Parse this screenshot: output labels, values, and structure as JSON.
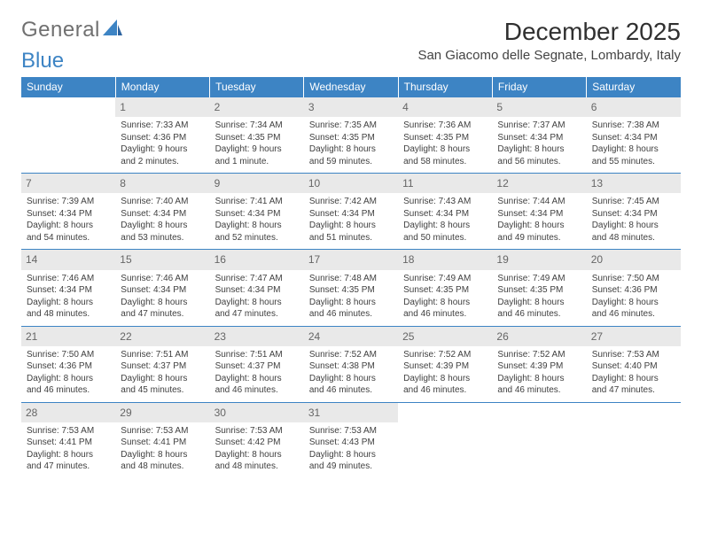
{
  "brand": {
    "name_a": "General",
    "name_b": "Blue"
  },
  "title": "December 2025",
  "location": "San Giacomo delle Segnate, Lombardy, Italy",
  "colors": {
    "accent": "#3d84c4",
    "daybg": "#e9e9e9"
  },
  "day_headers": [
    "Sunday",
    "Monday",
    "Tuesday",
    "Wednesday",
    "Thursday",
    "Friday",
    "Saturday"
  ],
  "weeks": [
    [
      {
        "n": "",
        "sr": "",
        "ss": "",
        "dl": ""
      },
      {
        "n": "1",
        "sr": "Sunrise: 7:33 AM",
        "ss": "Sunset: 4:36 PM",
        "dl": "Daylight: 9 hours and 2 minutes."
      },
      {
        "n": "2",
        "sr": "Sunrise: 7:34 AM",
        "ss": "Sunset: 4:35 PM",
        "dl": "Daylight: 9 hours and 1 minute."
      },
      {
        "n": "3",
        "sr": "Sunrise: 7:35 AM",
        "ss": "Sunset: 4:35 PM",
        "dl": "Daylight: 8 hours and 59 minutes."
      },
      {
        "n": "4",
        "sr": "Sunrise: 7:36 AM",
        "ss": "Sunset: 4:35 PM",
        "dl": "Daylight: 8 hours and 58 minutes."
      },
      {
        "n": "5",
        "sr": "Sunrise: 7:37 AM",
        "ss": "Sunset: 4:34 PM",
        "dl": "Daylight: 8 hours and 56 minutes."
      },
      {
        "n": "6",
        "sr": "Sunrise: 7:38 AM",
        "ss": "Sunset: 4:34 PM",
        "dl": "Daylight: 8 hours and 55 minutes."
      }
    ],
    [
      {
        "n": "7",
        "sr": "Sunrise: 7:39 AM",
        "ss": "Sunset: 4:34 PM",
        "dl": "Daylight: 8 hours and 54 minutes."
      },
      {
        "n": "8",
        "sr": "Sunrise: 7:40 AM",
        "ss": "Sunset: 4:34 PM",
        "dl": "Daylight: 8 hours and 53 minutes."
      },
      {
        "n": "9",
        "sr": "Sunrise: 7:41 AM",
        "ss": "Sunset: 4:34 PM",
        "dl": "Daylight: 8 hours and 52 minutes."
      },
      {
        "n": "10",
        "sr": "Sunrise: 7:42 AM",
        "ss": "Sunset: 4:34 PM",
        "dl": "Daylight: 8 hours and 51 minutes."
      },
      {
        "n": "11",
        "sr": "Sunrise: 7:43 AM",
        "ss": "Sunset: 4:34 PM",
        "dl": "Daylight: 8 hours and 50 minutes."
      },
      {
        "n": "12",
        "sr": "Sunrise: 7:44 AM",
        "ss": "Sunset: 4:34 PM",
        "dl": "Daylight: 8 hours and 49 minutes."
      },
      {
        "n": "13",
        "sr": "Sunrise: 7:45 AM",
        "ss": "Sunset: 4:34 PM",
        "dl": "Daylight: 8 hours and 48 minutes."
      }
    ],
    [
      {
        "n": "14",
        "sr": "Sunrise: 7:46 AM",
        "ss": "Sunset: 4:34 PM",
        "dl": "Daylight: 8 hours and 48 minutes."
      },
      {
        "n": "15",
        "sr": "Sunrise: 7:46 AM",
        "ss": "Sunset: 4:34 PM",
        "dl": "Daylight: 8 hours and 47 minutes."
      },
      {
        "n": "16",
        "sr": "Sunrise: 7:47 AM",
        "ss": "Sunset: 4:34 PM",
        "dl": "Daylight: 8 hours and 47 minutes."
      },
      {
        "n": "17",
        "sr": "Sunrise: 7:48 AM",
        "ss": "Sunset: 4:35 PM",
        "dl": "Daylight: 8 hours and 46 minutes."
      },
      {
        "n": "18",
        "sr": "Sunrise: 7:49 AM",
        "ss": "Sunset: 4:35 PM",
        "dl": "Daylight: 8 hours and 46 minutes."
      },
      {
        "n": "19",
        "sr": "Sunrise: 7:49 AM",
        "ss": "Sunset: 4:35 PM",
        "dl": "Daylight: 8 hours and 46 minutes."
      },
      {
        "n": "20",
        "sr": "Sunrise: 7:50 AM",
        "ss": "Sunset: 4:36 PM",
        "dl": "Daylight: 8 hours and 46 minutes."
      }
    ],
    [
      {
        "n": "21",
        "sr": "Sunrise: 7:50 AM",
        "ss": "Sunset: 4:36 PM",
        "dl": "Daylight: 8 hours and 46 minutes."
      },
      {
        "n": "22",
        "sr": "Sunrise: 7:51 AM",
        "ss": "Sunset: 4:37 PM",
        "dl": "Daylight: 8 hours and 45 minutes."
      },
      {
        "n": "23",
        "sr": "Sunrise: 7:51 AM",
        "ss": "Sunset: 4:37 PM",
        "dl": "Daylight: 8 hours and 46 minutes."
      },
      {
        "n": "24",
        "sr": "Sunrise: 7:52 AM",
        "ss": "Sunset: 4:38 PM",
        "dl": "Daylight: 8 hours and 46 minutes."
      },
      {
        "n": "25",
        "sr": "Sunrise: 7:52 AM",
        "ss": "Sunset: 4:39 PM",
        "dl": "Daylight: 8 hours and 46 minutes."
      },
      {
        "n": "26",
        "sr": "Sunrise: 7:52 AM",
        "ss": "Sunset: 4:39 PM",
        "dl": "Daylight: 8 hours and 46 minutes."
      },
      {
        "n": "27",
        "sr": "Sunrise: 7:53 AM",
        "ss": "Sunset: 4:40 PM",
        "dl": "Daylight: 8 hours and 47 minutes."
      }
    ],
    [
      {
        "n": "28",
        "sr": "Sunrise: 7:53 AM",
        "ss": "Sunset: 4:41 PM",
        "dl": "Daylight: 8 hours and 47 minutes."
      },
      {
        "n": "29",
        "sr": "Sunrise: 7:53 AM",
        "ss": "Sunset: 4:41 PM",
        "dl": "Daylight: 8 hours and 48 minutes."
      },
      {
        "n": "30",
        "sr": "Sunrise: 7:53 AM",
        "ss": "Sunset: 4:42 PM",
        "dl": "Daylight: 8 hours and 48 minutes."
      },
      {
        "n": "31",
        "sr": "Sunrise: 7:53 AM",
        "ss": "Sunset: 4:43 PM",
        "dl": "Daylight: 8 hours and 49 minutes."
      },
      {
        "n": "",
        "sr": "",
        "ss": "",
        "dl": ""
      },
      {
        "n": "",
        "sr": "",
        "ss": "",
        "dl": ""
      },
      {
        "n": "",
        "sr": "",
        "ss": "",
        "dl": ""
      }
    ]
  ]
}
